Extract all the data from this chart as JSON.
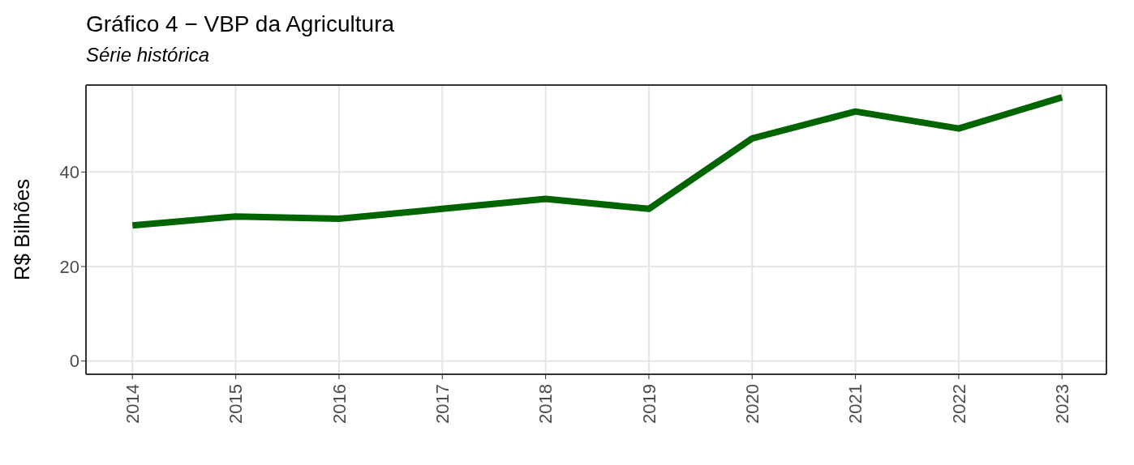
{
  "chart_data": {
    "type": "line",
    "title": "Gráfico 4 − VBP da Agricultura",
    "subtitle": "Série histórica",
    "ylabel": "R$ Bilhões",
    "x": [
      2014,
      2015,
      2016,
      2017,
      2018,
      2019,
      2020,
      2021,
      2022,
      2023
    ],
    "series": [
      {
        "color": "#006400",
        "values": [
          28.7,
          30.6,
          30.1,
          32.2,
          34.3,
          32.2,
          47.1,
          52.8,
          49.2,
          55.8
        ]
      }
    ],
    "xlim": [
      2013.55,
      2023.43
    ],
    "xticks": [
      2014,
      2015,
      2016,
      2017,
      2018,
      2019,
      2020,
      2021,
      2022,
      2023
    ],
    "ylim": [
      -2.8,
      58.4
    ],
    "yticks": [
      0,
      20,
      40
    ],
    "grid": true,
    "legend": false,
    "marker": "none",
    "line_style": "solid"
  }
}
